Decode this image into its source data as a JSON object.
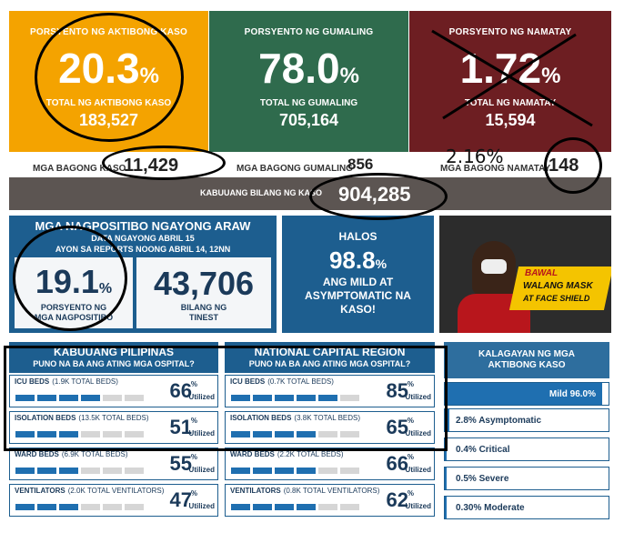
{
  "active": {
    "label": "PORSYENTO NG AKTIBONG KASO",
    "percent": "20.3",
    "pct_sign": "%",
    "total_label": "TOTAL NG AKTIBONG KASO",
    "total": "183,527",
    "color": "#f4a300"
  },
  "recovered": {
    "label": "PORSYENTO NG GUMALING",
    "percent": "78.0",
    "pct_sign": "%",
    "total_label": "TOTAL NG GUMALING",
    "total": "705,164",
    "color": "#2f6b4d"
  },
  "deaths": {
    "label": "PORSYENTO NG NAMATAY",
    "percent": "1.72",
    "pct_sign": "%",
    "total_label": "TOTAL NG NAMATAY",
    "total": "15,594",
    "color": "#6d1e22",
    "handwritten": "2.16%"
  },
  "new_row": {
    "new_cases_label": "MGA BAGONG KASO",
    "new_cases": "11,429",
    "new_recovered_label": "MGA BAGONG GUMALING",
    "new_recovered": "856",
    "new_deaths_label": "MGA BAGONG NAMATAY",
    "new_deaths": "148"
  },
  "total_cases": {
    "label": "KABUUANG BILANG NG KASO",
    "value": "904,285"
  },
  "positive": {
    "title": "MGA NAGPOSITIBO NGAYONG ARAW",
    "line1": "DATA NGAYONG ABRIL 15",
    "line2": "AYON SA REPORTS NOONG ABRIL 14, 12NN",
    "rate": "19.1",
    "rate_sign": "%",
    "rate_label": "PORSYENTO NG MGA NAGPOSITIBO",
    "tested": "43,706",
    "tested_label": "BILANG NG TINEST"
  },
  "mild": {
    "top": "HALOS",
    "value": "98.8",
    "sign": "%",
    "caption": "ANG MILD AT ASYMPTOMATIC NA KASO!"
  },
  "ad": {
    "line1": "BAWAL",
    "line2": "WALANG MASK",
    "line3": "AT FACE SHIELD"
  },
  "ph": {
    "title": "KABUUANG PILIPINAS",
    "subtitle": "PUNO NA BA ANG ATING MGA OSPITAL?",
    "cards": [
      {
        "title": "ICU BEDS",
        "beds": "(1.9K TOTAL BEDS)",
        "value": "66",
        "filled": 4
      },
      {
        "title": "ISOLATION BEDS",
        "beds": "(13.5K TOTAL BEDS)",
        "value": "51",
        "filled": 3
      },
      {
        "title": "WARD BEDS",
        "beds": "(6.9K TOTAL BEDS)",
        "value": "55",
        "filled": 3
      },
      {
        "title": "VENTILATORS",
        "beds": "(2.0K TOTAL VENTILATORS)",
        "value": "47",
        "filled": 3
      }
    ]
  },
  "ncr": {
    "title": "NATIONAL CAPITAL REGION",
    "subtitle": "PUNO NA BA ANG ATING MGA OSPITAL?",
    "cards": [
      {
        "title": "ICU BEDS",
        "beds": "(0.7K TOTAL BEDS)",
        "value": "85",
        "filled": 5
      },
      {
        "title": "ISOLATION BEDS",
        "beds": "(3.8K TOTAL BEDS)",
        "value": "65",
        "filled": 4
      },
      {
        "title": "WARD BEDS",
        "beds": "(2.2K TOTAL BEDS)",
        "value": "66",
        "filled": 4
      },
      {
        "title": "VENTILATORS",
        "beds": "(0.8K TOTAL VENTILATORS)",
        "value": "62",
        "filled": 4
      }
    ]
  },
  "util": {
    "sign": "%",
    "label": "Utilized"
  },
  "status": {
    "title": "KALAGAYAN NG MGA AKTIBONG KASO",
    "rows": [
      {
        "label": "Mild 96.0%",
        "share": 96.0
      },
      {
        "label": "2.8% Asymptomatic",
        "share": 2.8
      },
      {
        "label": "0.4% Critical",
        "share": 0.4
      },
      {
        "label": "0.5% Severe",
        "share": 0.5
      },
      {
        "label": "0.30% Moderate",
        "share": 0.3
      }
    ]
  }
}
